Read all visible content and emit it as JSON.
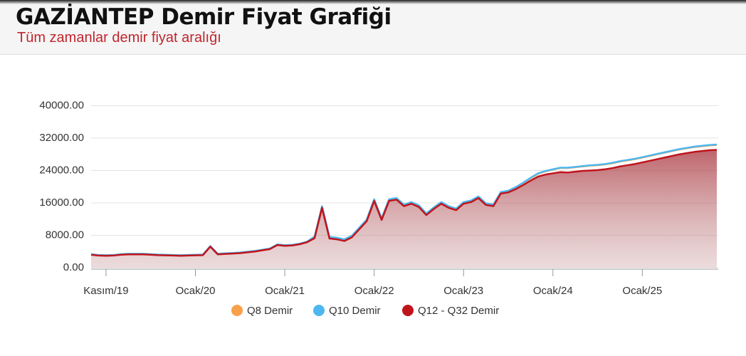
{
  "header": {
    "title": "GAZİANTEP Demir Fiyat Grafiği",
    "subtitle": "Tüm zamanlar demir fiyat aralığı"
  },
  "chart_data": {
    "type": "line",
    "categories": [
      null,
      null,
      "Kasım/19",
      null,
      null,
      null,
      null,
      null,
      null,
      null,
      null,
      null,
      null,
      null,
      "Ocak/20",
      null,
      null,
      null,
      null,
      null,
      null,
      null,
      null,
      null,
      null,
      null,
      "Ocak/21",
      null,
      null,
      null,
      null,
      null,
      null,
      null,
      null,
      null,
      null,
      null,
      "Ocak/22",
      null,
      null,
      null,
      null,
      null,
      null,
      null,
      null,
      null,
      null,
      null,
      "Ocak/23",
      null,
      null,
      null,
      null,
      null,
      null,
      null,
      null,
      null,
      null,
      null,
      "Ocak/24",
      null,
      null,
      null,
      null,
      null,
      null,
      null,
      null,
      null,
      null,
      null,
      "Ocak/25",
      null,
      null,
      null,
      null,
      null,
      null,
      null,
      null,
      null,
      null
    ],
    "series": [
      {
        "name": "Q8 Demir",
        "color": "#f7a24a",
        "values": [
          3250,
          3050,
          3000,
          3050,
          3250,
          3350,
          3350,
          3350,
          3250,
          3150,
          3100,
          3050,
          3000,
          3050,
          3100,
          3150,
          5250,
          3350,
          3450,
          3550,
          3650,
          3850,
          4050,
          4350,
          4650,
          5650,
          5450,
          5550,
          5850,
          6350,
          7600,
          15100,
          7500,
          7300,
          6900,
          7800,
          9800,
          11800,
          16800,
          12100,
          16800,
          17100,
          15500,
          16100,
          15300,
          13300,
          14800,
          16100,
          15100,
          14500,
          16100,
          16500,
          17500,
          15800,
          15500,
          18600,
          18900,
          19800,
          20900,
          22100,
          23200,
          23800,
          24200,
          24600,
          24600,
          24800,
          25000,
          25200,
          25300,
          25500,
          25800,
          26200,
          26500,
          26800,
          27200,
          27600,
          28000,
          28400,
          28800,
          29200,
          29500,
          29800,
          30000,
          30200,
          30300
        ]
      },
      {
        "name": "Q10 Demir",
        "color": "#4db8f0",
        "values": [
          3350,
          3150,
          3100,
          3150,
          3350,
          3450,
          3450,
          3450,
          3350,
          3250,
          3200,
          3150,
          3100,
          3150,
          3200,
          3250,
          5350,
          3450,
          3550,
          3650,
          3750,
          3950,
          4150,
          4450,
          4750,
          5750,
          5550,
          5650,
          5950,
          6450,
          7700,
          15200,
          7600,
          7400,
          7000,
          7900,
          9900,
          11900,
          16900,
          12200,
          16900,
          17200,
          15600,
          16200,
          15400,
          13400,
          14900,
          16200,
          15200,
          14600,
          16200,
          16600,
          17600,
          15900,
          15600,
          18700,
          19000,
          19900,
          21000,
          22200,
          23300,
          23900,
          24300,
          24700,
          24700,
          24900,
          25100,
          25300,
          25400,
          25600,
          25900,
          26300,
          26600,
          26900,
          27300,
          27700,
          28100,
          28500,
          28900,
          29300,
          29600,
          29900,
          30100,
          30300,
          30400
        ]
      },
      {
        "name": "Q12 - Q32 Demir",
        "color": "#c0141c",
        "values": [
          3200,
          3000,
          2950,
          3000,
          3200,
          3300,
          3300,
          3300,
          3200,
          3100,
          3050,
          3000,
          2950,
          3000,
          3050,
          3100,
          5200,
          3300,
          3400,
          3500,
          3600,
          3800,
          4000,
          4300,
          4600,
          5600,
          5400,
          5500,
          5800,
          6300,
          7300,
          14800,
          7200,
          7000,
          6600,
          7500,
          9500,
          11500,
          16500,
          11800,
          16500,
          16800,
          15200,
          15800,
          15000,
          13000,
          14500,
          15800,
          14800,
          14200,
          15800,
          16200,
          17200,
          15500,
          15200,
          18300,
          18600,
          19400,
          20400,
          21500,
          22500,
          23000,
          23300,
          23600,
          23500,
          23700,
          23900,
          24000,
          24100,
          24300,
          24600,
          25000,
          25300,
          25600,
          26000,
          26400,
          26800,
          27200,
          27600,
          28000,
          28300,
          28600,
          28800,
          29000,
          29100
        ]
      }
    ],
    "ylim": [
      0,
      45000
    ],
    "yticks": [
      {
        "value": 0,
        "label": "0.00"
      },
      {
        "value": 8000,
        "label": "8000.00"
      },
      {
        "value": 16000,
        "label": "16000.00"
      },
      {
        "value": 24000,
        "label": "24000.00"
      },
      {
        "value": 32000,
        "label": "32000.00"
      },
      {
        "value": 40000,
        "label": "40000.00"
      }
    ],
    "grid": true
  }
}
